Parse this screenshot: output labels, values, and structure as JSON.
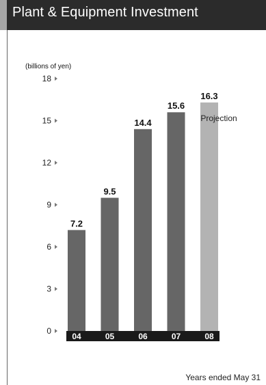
{
  "header": {
    "title": "Plant & Equipment Investment"
  },
  "chart_data": {
    "type": "bar",
    "unit_label": "(billions of yen)",
    "categories": [
      "04",
      "05",
      "06",
      "07",
      "08"
    ],
    "values": [
      7.2,
      9.5,
      14.4,
      15.6,
      16.3
    ],
    "value_labels": [
      "7.2",
      "9.5",
      "14.4",
      "15.6",
      "16.3"
    ],
    "projection_index": 4,
    "projection_label": "Projection",
    "y_ticks": [
      "0",
      "3",
      "6",
      "9",
      "12",
      "15",
      "18"
    ],
    "ylim": [
      0,
      18
    ],
    "bar_color": "#666666",
    "projection_color": "#b3b3b3",
    "category_band_color": "#1a1a1a",
    "title": "Plant & Equipment Investment",
    "xlabel": "Years ended May 31",
    "ylabel": "(billions of yen)"
  },
  "footer": {
    "note": "Years ended May 31"
  }
}
